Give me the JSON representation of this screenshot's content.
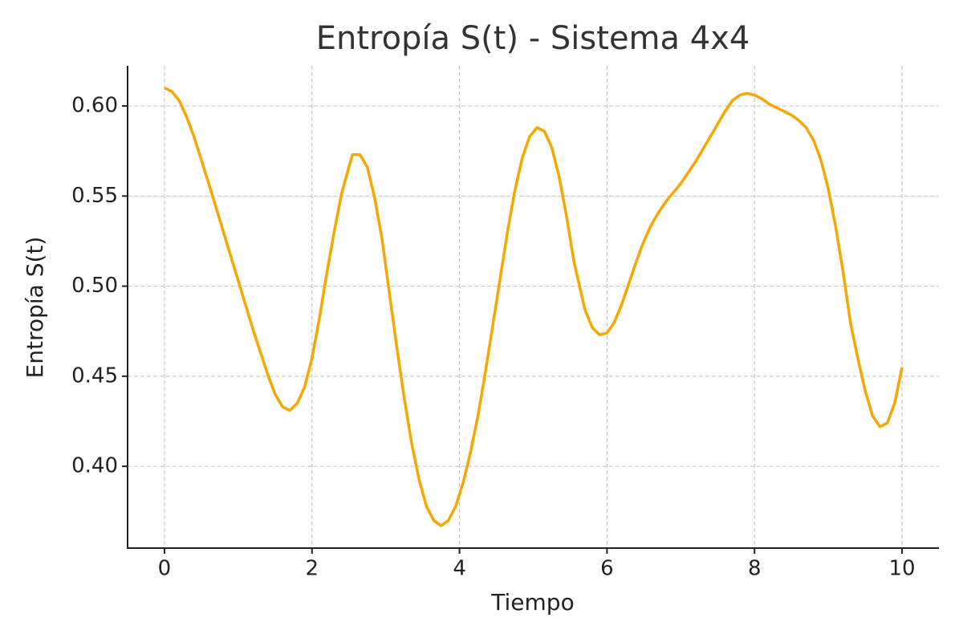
{
  "chart_data": {
    "type": "line",
    "title": "Entropía S(t) - Sistema 4x4",
    "x_label": "Tiempo",
    "y_label": "Entropía S(t)",
    "x": [
      0,
      0.1,
      0.2,
      0.3,
      0.4,
      0.5,
      0.6,
      0.8,
      1.0,
      1.2,
      1.4,
      1.5,
      1.6,
      1.7,
      1.8,
      1.9,
      2.0,
      2.1,
      2.2,
      2.3,
      2.4,
      2.5,
      2.55,
      2.65,
      2.75,
      2.85,
      2.95,
      3.05,
      3.15,
      3.25,
      3.35,
      3.45,
      3.55,
      3.65,
      3.75,
      3.85,
      3.95,
      4.05,
      4.15,
      4.25,
      4.35,
      4.45,
      4.55,
      4.65,
      4.75,
      4.85,
      4.95,
      5.05,
      5.15,
      5.25,
      5.35,
      5.45,
      5.55,
      5.7,
      5.8,
      5.9,
      6.0,
      6.1,
      6.2,
      6.3,
      6.4,
      6.5,
      6.6,
      6.7,
      6.8,
      6.9,
      7.0,
      7.1,
      7.2,
      7.3,
      7.4,
      7.5,
      7.6,
      7.7,
      7.8,
      7.9,
      8.0,
      8.1,
      8.2,
      8.3,
      8.4,
      8.5,
      8.6,
      8.7,
      8.8,
      8.9,
      9.0,
      9.1,
      9.2,
      9.3,
      9.4,
      9.5,
      9.6,
      9.7,
      9.8,
      9.9,
      10.0
    ],
    "series": [
      {
        "name": "S(t)",
        "color": "#f6a800",
        "values": [
          0.61,
          0.608,
          0.603,
          0.594,
          0.583,
          0.57,
          0.557,
          0.53,
          0.503,
          0.476,
          0.451,
          0.44,
          0.433,
          0.431,
          0.435,
          0.444,
          0.46,
          0.482,
          0.507,
          0.53,
          0.551,
          0.566,
          0.573,
          0.573,
          0.566,
          0.549,
          0.526,
          0.496,
          0.466,
          0.438,
          0.413,
          0.393,
          0.378,
          0.37,
          0.367,
          0.37,
          0.378,
          0.391,
          0.408,
          0.428,
          0.452,
          0.478,
          0.504,
          0.53,
          0.553,
          0.571,
          0.583,
          0.588,
          0.586,
          0.577,
          0.561,
          0.539,
          0.514,
          0.487,
          0.477,
          0.473,
          0.474,
          0.48,
          0.49,
          0.502,
          0.514,
          0.525,
          0.534,
          0.541,
          0.547,
          0.552,
          0.557,
          0.563,
          0.569,
          0.576,
          0.583,
          0.59,
          0.597,
          0.603,
          0.606,
          0.607,
          0.606,
          0.604,
          0.601,
          0.599,
          0.597,
          0.595,
          0.592,
          0.588,
          0.581,
          0.57,
          0.554,
          0.533,
          0.508,
          0.48,
          0.46,
          0.442,
          0.428,
          0.422,
          0.424,
          0.435,
          0.455
        ]
      }
    ],
    "xlim": [
      -0.5,
      10.5
    ],
    "xticks": [
      0,
      2,
      4,
      6,
      8,
      10
    ],
    "ylim": [
      0.3546,
      0.6223
    ],
    "yticks": [
      {
        "value": 0.4,
        "label": "0.40"
      },
      {
        "value": 0.45,
        "label": "0.45"
      },
      {
        "value": 0.5,
        "label": "0.50"
      },
      {
        "value": 0.55,
        "label": "0.55"
      },
      {
        "value": 0.6,
        "label": "0.60"
      }
    ],
    "grid": true
  }
}
